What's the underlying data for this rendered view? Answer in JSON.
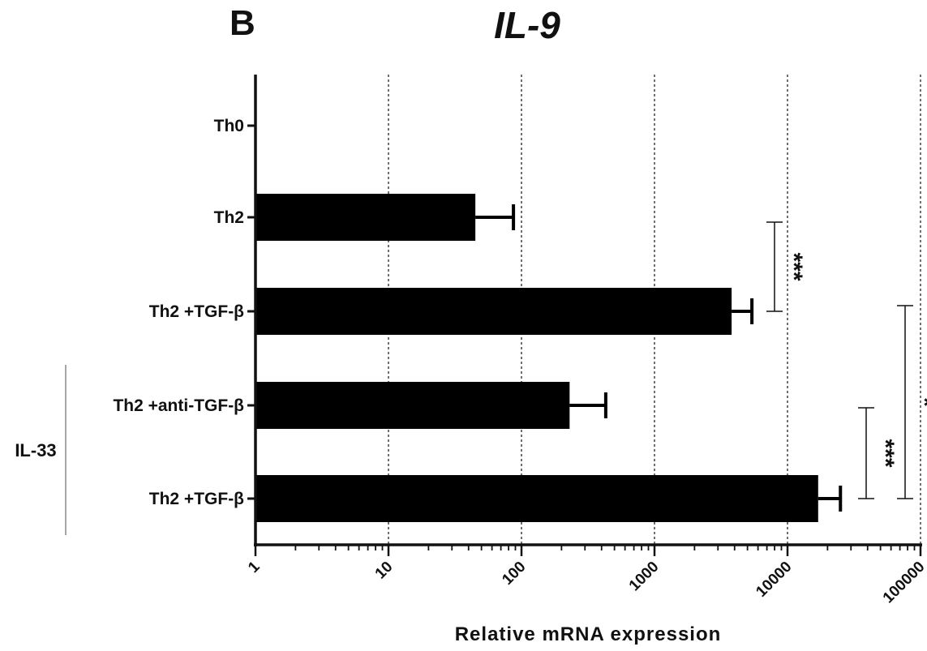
{
  "panel_letter": "B",
  "chart_data": {
    "type": "bar",
    "orientation": "horizontal",
    "title": "IL-9",
    "xlabel": "Relative mRNA expression",
    "ylabel": "",
    "x_scale": "log",
    "xlim": [
      1,
      100000
    ],
    "grid": "vertical dashed lines at each decade",
    "x_ticks": [
      "1",
      "10",
      "100",
      "1000",
      "10000",
      "100000"
    ],
    "categories": [
      "Th0",
      "Th2",
      "Th2 +TGF-β",
      "Th2 +anti-TGF-β",
      "Th2 +TGF-β"
    ],
    "values": [
      1,
      45,
      3800,
      230,
      17000
    ],
    "error_upper": [
      1,
      87,
      5400,
      430,
      25000
    ],
    "group": {
      "label": "IL-33",
      "categories": [
        3,
        4
      ]
    },
    "significance": [
      {
        "from": 1,
        "to": 2,
        "label": "***"
      },
      {
        "from": 3,
        "to": 4,
        "label": "***"
      },
      {
        "from": 2,
        "to": 4,
        "label": "*"
      }
    ]
  }
}
